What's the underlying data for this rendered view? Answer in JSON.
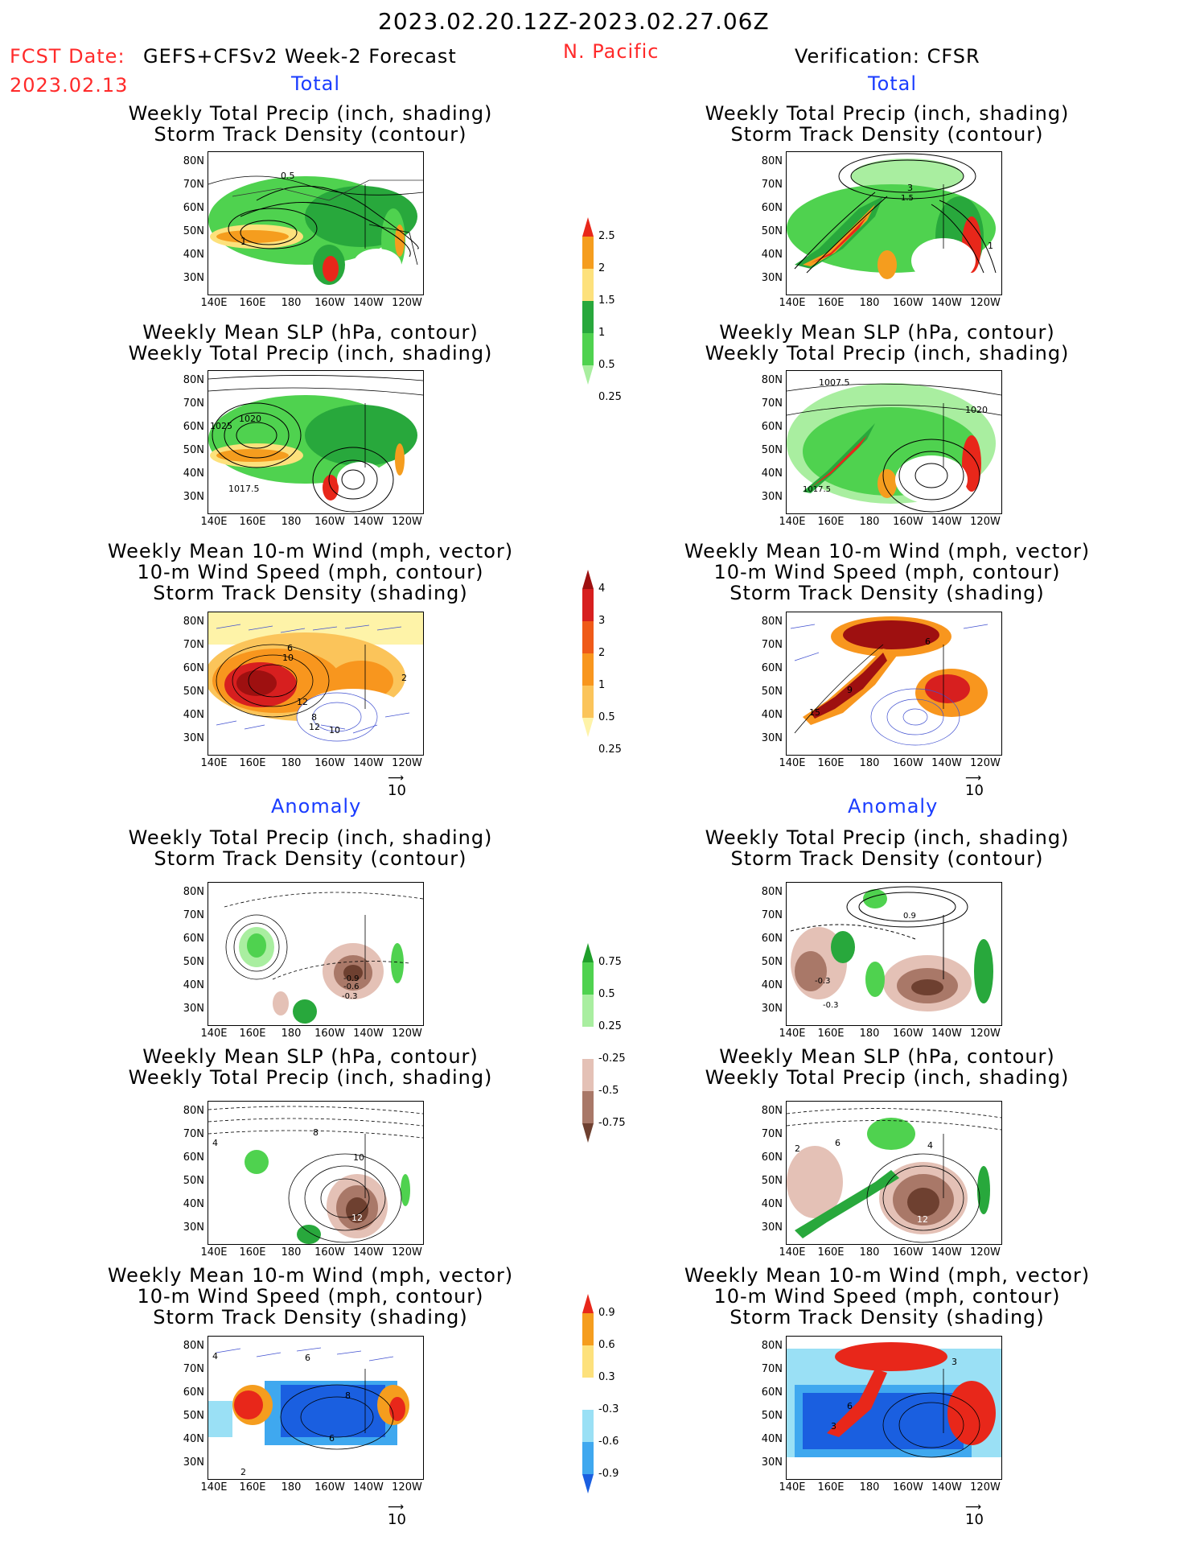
{
  "header": {
    "period": "2023.02.20.12Z-2023.02.27.06Z",
    "fcst_date_label": "FCST Date:",
    "fcst_date_value": "2023.02.13",
    "model": "GEFS+CFSv2 Week-2 Forecast",
    "region": "N. Pacific",
    "verification": "Verification: CFSR"
  },
  "sections": {
    "total": "Total",
    "anomaly": "Anomaly"
  },
  "panel_titles": {
    "precip_storm": [
      "Weekly Total Precip (inch, shading)",
      "Storm Track Density (contour)"
    ],
    "slp_precip": [
      "Weekly Mean SLP (hPa, contour)",
      "Weekly Total Precip (inch, shading)"
    ],
    "wind_storm": [
      "Weekly Mean 10-m Wind (mph, vector)",
      "10-m Wind Speed (mph, contour)",
      "Storm Track Density (shading)"
    ]
  },
  "axes": {
    "lat": [
      "80N",
      "70N",
      "60N",
      "50N",
      "40N",
      "30N"
    ],
    "lon": [
      "140E",
      "160E",
      "180",
      "160W",
      "140W",
      "120W"
    ]
  },
  "vector_ref": "10",
  "contour_labels": {
    "p1": [
      "0.5",
      "1"
    ],
    "p2": [
      "3",
      "1.5",
      "1"
    ],
    "p3": [
      "1020",
      "1025",
      "1017.5"
    ],
    "p4": [
      "1007.5",
      "1020",
      "1017.5"
    ],
    "p5": [
      "10",
      "6",
      "12",
      "8",
      "12",
      "10",
      "2"
    ],
    "p6": [
      "6",
      "9",
      "15"
    ],
    "p7": [
      "-0.9",
      "-0.6",
      "-0.3"
    ],
    "p8": [
      "0.9",
      "-0.3",
      "-0.3"
    ],
    "p9": [
      "8",
      "10",
      "12",
      "4"
    ],
    "p10": [
      "4",
      "2",
      "6",
      "12"
    ],
    "p11": [
      "6",
      "8",
      "6",
      "2",
      "4"
    ],
    "p12": [
      "3",
      "6",
      "3"
    ]
  },
  "colorbars": {
    "precip_total": {
      "ticks": [
        "2.5",
        "2",
        "1.5",
        "1",
        "0.5",
        "0.25"
      ],
      "colors": [
        "#e8271a",
        "#f59d1e",
        "#fde17c",
        "#28a83c",
        "#4fd24f",
        "#a9eea0"
      ]
    },
    "storm_total": {
      "ticks": [
        "4",
        "3",
        "2",
        "1",
        "0.5",
        "0.25"
      ],
      "colors": [
        "#9e1010",
        "#d71f1f",
        "#ef5a18",
        "#f8961e",
        "#fbc45a",
        "#fef3a8"
      ]
    },
    "precip_anom": {
      "ticks": [
        "0.75",
        "0.5",
        "0.25",
        "-0.25",
        "-0.5",
        "-0.75"
      ],
      "colors": [
        "#1f9e2a",
        "#4fd24f",
        "#a9eea0",
        "#ffffff",
        "#e4c1b6",
        "#a97868",
        "#6e4030"
      ]
    },
    "storm_anom": {
      "ticks": [
        "0.9",
        "0.6",
        "0.3",
        "-0.3",
        "-0.6",
        "-0.9"
      ],
      "colors": [
        "#e8271a",
        "#f59d1e",
        "#fde17c",
        "#ffffff",
        "#9ae0f5",
        "#3fa8ef",
        "#1a5fe0"
      ]
    }
  }
}
